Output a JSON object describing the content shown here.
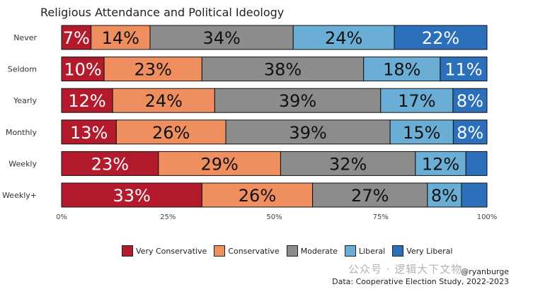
{
  "chart_data": {
    "type": "bar",
    "orientation": "horizontal-stacked-100",
    "title": "Religious Attendance and Political Ideology",
    "categories": [
      "Never",
      "Seldom",
      "Yearly",
      "Monthly",
      "Weekly",
      "Weekly+"
    ],
    "series": [
      {
        "name": "Very Conservative",
        "color": "#b31b2c",
        "values": [
          7,
          10,
          12,
          13,
          23,
          33
        ]
      },
      {
        "name": "Conservative",
        "color": "#ef8f60",
        "values": [
          14,
          23,
          24,
          26,
          29,
          26
        ]
      },
      {
        "name": "Moderate",
        "color": "#8c8c8c",
        "values": [
          34,
          38,
          39,
          39,
          32,
          27
        ]
      },
      {
        "name": "Liberal",
        "color": "#6aaed6",
        "values": [
          24,
          18,
          17,
          15,
          12,
          8
        ]
      },
      {
        "name": "Very Liberal",
        "color": "#2c6fbb",
        "values": [
          22,
          11,
          8,
          8,
          5,
          6
        ]
      }
    ],
    "labels": [
      [
        "7%",
        "14%",
        "34%",
        "24%",
        "22%"
      ],
      [
        "10%",
        "23%",
        "38%",
        "18%",
        "11%"
      ],
      [
        "12%",
        "24%",
        "39%",
        "17%",
        "8%"
      ],
      [
        "13%",
        "26%",
        "39%",
        "15%",
        "8%"
      ],
      [
        "23%",
        "29%",
        "32%",
        "12%",
        ""
      ],
      [
        "33%",
        "26%",
        "27%",
        "8%",
        ""
      ]
    ],
    "xlim": [
      0,
      100
    ],
    "xticks": [
      "0%",
      "25%",
      "50%",
      "75%",
      "100%"
    ],
    "xlabel": "",
    "ylabel": "",
    "legend_position": "bottom"
  },
  "footer": {
    "credit": "@ryanburge",
    "source": "Data: Cooperative Election Study, 2022-2023",
    "watermark": "公众号 · 逻辑大下文物"
  }
}
